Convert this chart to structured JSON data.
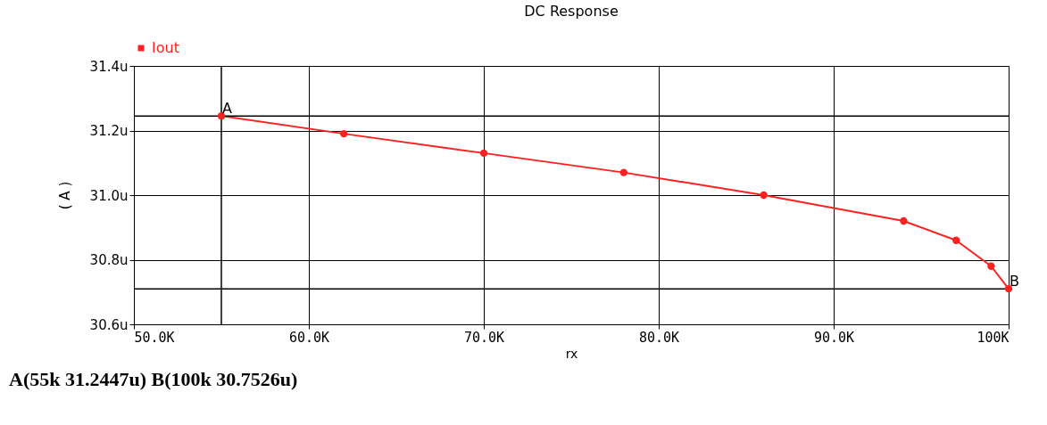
{
  "chart_data": {
    "type": "line",
    "title": "DC Response",
    "xlabel": "rx",
    "ylabel": "( A )",
    "series": [
      {
        "name": "Iout",
        "color": "#ff2020",
        "x": [
          55000,
          62000,
          70000,
          78000,
          86000,
          94000,
          97000,
          99000,
          100000
        ],
        "values": [
          31.245,
          31.19,
          31.13,
          31.07,
          31.0,
          30.92,
          30.86,
          30.78,
          30.71
        ]
      }
    ],
    "xlim": [
      50000,
      100000
    ],
    "ylim": [
      30.6,
      31.4
    ],
    "xticks": [
      {
        "value": 50000,
        "label": "50.0K"
      },
      {
        "value": 60000,
        "label": "60.0K"
      },
      {
        "value": 70000,
        "label": "70.0K"
      },
      {
        "value": 80000,
        "label": "80.0K"
      },
      {
        "value": 90000,
        "label": "90.0K"
      },
      {
        "value": 100000,
        "label": "100K"
      }
    ],
    "yticks": [
      {
        "value": 30.6,
        "label": "30.6u"
      },
      {
        "value": 30.8,
        "label": "30.8u"
      },
      {
        "value": 31.0,
        "label": "31.0u"
      },
      {
        "value": 31.2,
        "label": "31.2u"
      },
      {
        "value": 31.4,
        "label": "31.4u"
      }
    ],
    "ref_lines": [
      {
        "axis": "x",
        "value": 55000,
        "color": "#000000"
      },
      {
        "axis": "y",
        "value": 31.245,
        "color": "#000000"
      },
      {
        "axis": "y",
        "value": 30.71,
        "color": "#000000"
      }
    ],
    "annotations": [
      {
        "text": "A",
        "x": 55000,
        "y": 31.245
      },
      {
        "text": "B",
        "x": 100000,
        "y": 30.71
      },
      "A(55k  31.2447u)  B(100k  30.7526u)"
    ],
    "grid": true,
    "legend": "top left",
    "marker": "circle",
    "line_style": "solid"
  }
}
